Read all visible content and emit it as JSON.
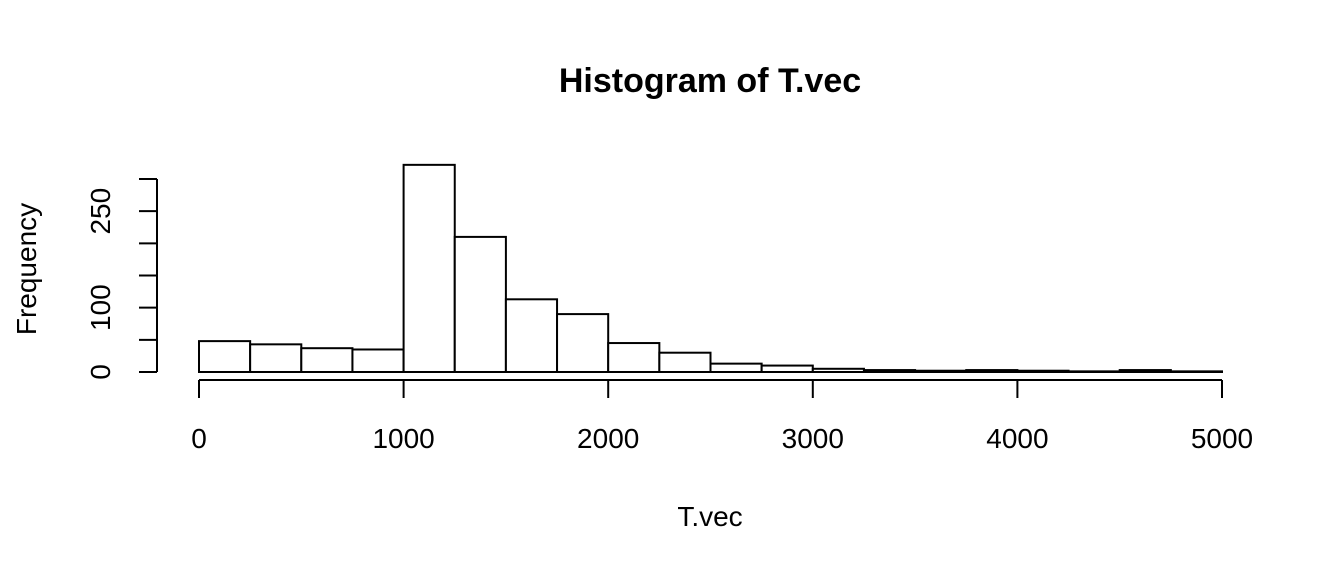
{
  "chart_data": {
    "type": "bar",
    "subtype": "histogram",
    "title": "Histogram of T.vec",
    "xlabel": "T.vec",
    "ylabel": "Frequency",
    "bin_width": 250,
    "bins": [
      [
        0,
        250
      ],
      [
        250,
        500
      ],
      [
        500,
        750
      ],
      [
        750,
        1000
      ],
      [
        1000,
        1250
      ],
      [
        1250,
        1500
      ],
      [
        1500,
        1750
      ],
      [
        1750,
        2000
      ],
      [
        2000,
        2250
      ],
      [
        2250,
        2500
      ],
      [
        2500,
        2750
      ],
      [
        2750,
        3000
      ],
      [
        3000,
        3250
      ],
      [
        3250,
        3500
      ],
      [
        3500,
        3750
      ],
      [
        3750,
        4000
      ],
      [
        4000,
        4250
      ],
      [
        4250,
        4500
      ],
      [
        4500,
        4750
      ],
      [
        4750,
        5000
      ]
    ],
    "values": [
      48,
      43,
      37,
      35,
      322,
      210,
      113,
      90,
      45,
      30,
      13,
      10,
      5,
      3,
      2,
      3,
      2,
      1,
      3,
      1
    ],
    "xlim": [
      0,
      5000
    ],
    "ylim": [
      0,
      300
    ],
    "x_ticks": [
      0,
      1000,
      2000,
      3000,
      4000,
      5000
    ],
    "x_tick_labels": [
      "0",
      "1000",
      "2000",
      "3000",
      "4000",
      "5000"
    ],
    "y_ticks": [
      0,
      50,
      100,
      150,
      200,
      250,
      300
    ],
    "y_tick_labels": [
      "0",
      "",
      "100",
      "",
      "",
      "250",
      ""
    ],
    "grid": false,
    "legend": "none",
    "bar_fill": "#ffffff",
    "bar_stroke": "#000000"
  }
}
